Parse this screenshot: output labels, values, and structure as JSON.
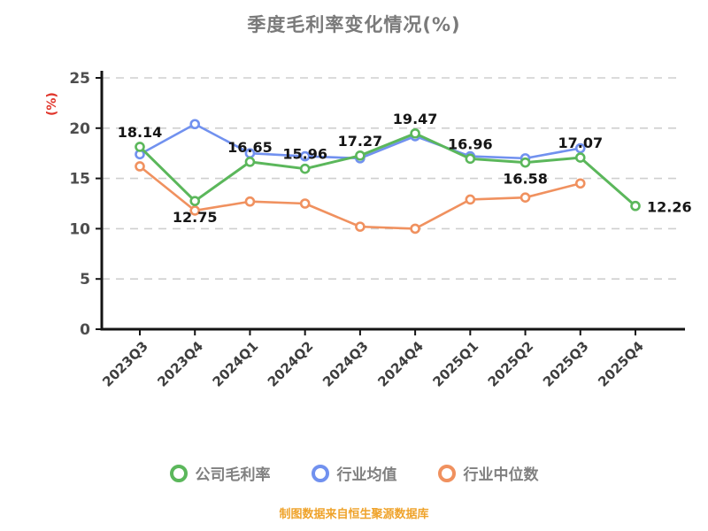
{
  "title": "季度毛利率变化情况(%)",
  "y_axis": {
    "name": "(%)"
  },
  "footer": {
    "text": "制图数据来自恒生聚源数据库"
  },
  "chart_data": {
    "type": "line",
    "title": "季度毛利率变化情况(%)",
    "categories": [
      "2023Q3",
      "2023Q4",
      "2024Q1",
      "2024Q2",
      "2024Q3",
      "2024Q4",
      "2025Q1",
      "2025Q2",
      "2025Q3",
      "2025Q4"
    ],
    "ylabel": "(%)",
    "ylim": [
      0,
      25
    ],
    "yticks": [
      0,
      5,
      10,
      15,
      20,
      25
    ],
    "grid": "horizontal-dashed",
    "legend_position": "bottom",
    "series": [
      {
        "name": "公司毛利率",
        "color": "#5bb75b",
        "show_labels": true,
        "values": [
          18.14,
          12.75,
          16.65,
          15.96,
          17.27,
          19.47,
          16.96,
          16.58,
          17.07,
          12.26
        ],
        "label_pos": [
          "above",
          "below",
          "above",
          "above",
          "above",
          "above",
          "above",
          "below",
          "above",
          "right"
        ]
      },
      {
        "name": "行业均值",
        "color": "#7191ef",
        "show_labels": false,
        "values": [
          17.4,
          20.4,
          17.5,
          17.2,
          17.0,
          19.2,
          17.2,
          17.0,
          18.0,
          null
        ]
      },
      {
        "name": "行业中位数",
        "color": "#f0915f",
        "show_labels": false,
        "values": [
          16.2,
          11.8,
          12.7,
          12.5,
          10.2,
          10.0,
          12.9,
          13.1,
          14.5,
          null
        ]
      }
    ]
  }
}
